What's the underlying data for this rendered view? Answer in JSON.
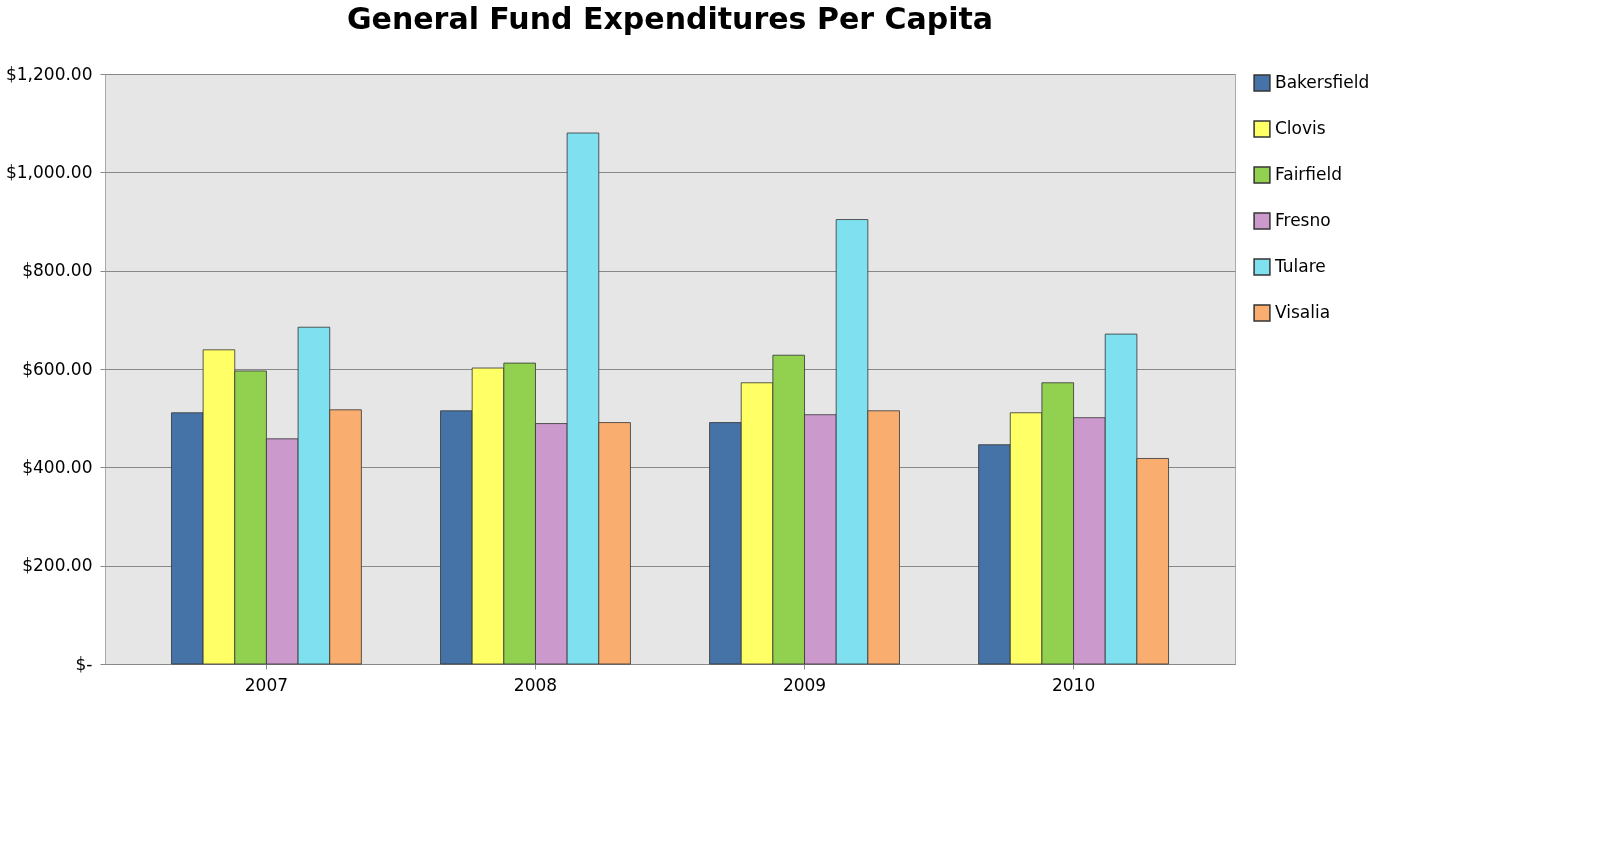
{
  "chart_data": {
    "type": "bar",
    "title": "General Fund Expenditures Per Capita",
    "categories": [
      "2007",
      "2008",
      "2009",
      "2010"
    ],
    "series": [
      {
        "name": "Bakersfield",
        "color": "#4572a7",
        "values": [
          511,
          515,
          491,
          446
        ]
      },
      {
        "name": "Clovis",
        "color": "#ffff66",
        "values": [
          639,
          602,
          572,
          511
        ]
      },
      {
        "name": "Fairfield",
        "color": "#92d050",
        "values": [
          596,
          612,
          628,
          572
        ]
      },
      {
        "name": "Fresno",
        "color": "#cc99cc",
        "values": [
          458,
          489,
          507,
          501
        ]
      },
      {
        "name": "Tulare",
        "color": "#7fe0f0",
        "values": [
          685,
          1080,
          904,
          671
        ]
      },
      {
        "name": "Visalia",
        "color": "#f9ad6f",
        "values": [
          517,
          491,
          515,
          418
        ]
      }
    ],
    "ylim": [
      0,
      1200
    ],
    "yticks": [
      {
        "value": 0,
        "label": "$-"
      },
      {
        "value": 200,
        "label": "$200.00"
      },
      {
        "value": 400,
        "label": "$400.00"
      },
      {
        "value": 600,
        "label": "$600.00"
      },
      {
        "value": 800,
        "label": "$800.00"
      },
      {
        "value": 1000,
        "label": "$1,000.00"
      },
      {
        "value": 1200,
        "label": "$1,200.00"
      }
    ],
    "grid": "y",
    "legend": "right"
  }
}
